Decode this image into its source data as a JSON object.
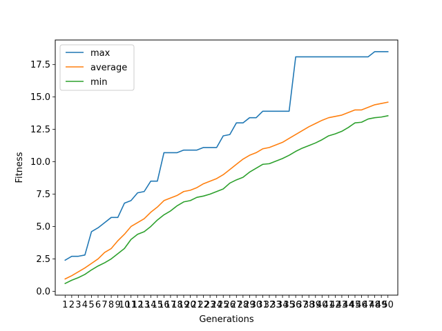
{
  "chart_data": {
    "type": "line",
    "title": "",
    "xlabel": "Generations",
    "ylabel": "Fitness",
    "ylim": [
      -0.3,
      19.4
    ],
    "xlim": [
      -0.5,
      51.5
    ],
    "grid": false,
    "legend_position": "top-left",
    "x_tick_labels": [
      "1",
      "2",
      "3",
      "4",
      "5",
      "6",
      "7",
      "8",
      "9",
      "10",
      "11",
      "12",
      "13",
      "14",
      "15",
      "16",
      "17",
      "18",
      "19",
      "20",
      "21",
      "22",
      "23",
      "24",
      "25",
      "26",
      "27",
      "28",
      "29",
      "30",
      "31",
      "32",
      "33",
      "34",
      "35",
      "36",
      "37",
      "38",
      "39",
      "40",
      "41",
      "42",
      "43",
      "44",
      "45",
      "46",
      "47",
      "48",
      "49",
      "50"
    ],
    "x": [
      1,
      2,
      3,
      4,
      5,
      6,
      7,
      8,
      9,
      10,
      11,
      12,
      13,
      14,
      15,
      16,
      17,
      18,
      19,
      20,
      21,
      22,
      23,
      24,
      25,
      26,
      27,
      28,
      29,
      30,
      31,
      32,
      33,
      34,
      35,
      36,
      37,
      38,
      39,
      40,
      41,
      42,
      43,
      44,
      45,
      46,
      47,
      48,
      49,
      50
    ],
    "y_ticks": [
      0.0,
      2.5,
      5.0,
      7.5,
      10.0,
      12.5,
      15.0,
      17.5
    ],
    "y_tick_labels": [
      "0.0",
      "2.5",
      "5.0",
      "7.5",
      "10.0",
      "12.5",
      "15.0",
      "17.5"
    ],
    "series": [
      {
        "name": "max",
        "color": "#1f77b4",
        "values": [
          2.4,
          2.7,
          2.7,
          2.8,
          4.6,
          4.9,
          5.3,
          5.7,
          5.7,
          6.8,
          7.0,
          7.6,
          7.7,
          8.5,
          8.5,
          10.7,
          10.7,
          10.7,
          10.9,
          10.9,
          10.9,
          11.1,
          11.1,
          11.1,
          12.0,
          12.1,
          13.0,
          13.0,
          13.4,
          13.4,
          13.9,
          13.9,
          13.9,
          13.9,
          13.9,
          18.1,
          18.1,
          18.1,
          18.1,
          18.1,
          18.1,
          18.1,
          18.1,
          18.1,
          18.1,
          18.1,
          18.1,
          18.5,
          18.5,
          18.5
        ]
      },
      {
        "name": "average",
        "color": "#ff7f0e",
        "values": [
          0.95,
          1.2,
          1.5,
          1.8,
          2.15,
          2.5,
          3.0,
          3.3,
          3.9,
          4.4,
          5.0,
          5.3,
          5.6,
          6.1,
          6.5,
          7.0,
          7.2,
          7.4,
          7.7,
          7.8,
          8.0,
          8.3,
          8.5,
          8.7,
          9.0,
          9.4,
          9.8,
          10.2,
          10.5,
          10.7,
          11.0,
          11.1,
          11.3,
          11.5,
          11.8,
          12.1,
          12.4,
          12.7,
          12.95,
          13.2,
          13.4,
          13.5,
          13.6,
          13.8,
          14.0,
          14.0,
          14.2,
          14.4,
          14.5,
          14.6
        ]
      },
      {
        "name": "min",
        "color": "#2ca02c",
        "values": [
          0.6,
          0.85,
          1.05,
          1.3,
          1.65,
          1.95,
          2.2,
          2.5,
          2.9,
          3.3,
          4.0,
          4.4,
          4.6,
          5.0,
          5.5,
          5.9,
          6.2,
          6.6,
          6.9,
          7.0,
          7.25,
          7.35,
          7.5,
          7.7,
          7.9,
          8.35,
          8.6,
          8.8,
          9.2,
          9.5,
          9.8,
          9.85,
          10.05,
          10.25,
          10.5,
          10.8,
          11.05,
          11.25,
          11.45,
          11.7,
          12.0,
          12.15,
          12.35,
          12.65,
          13.0,
          13.05,
          13.3,
          13.4,
          13.45,
          13.55
        ]
      }
    ]
  }
}
